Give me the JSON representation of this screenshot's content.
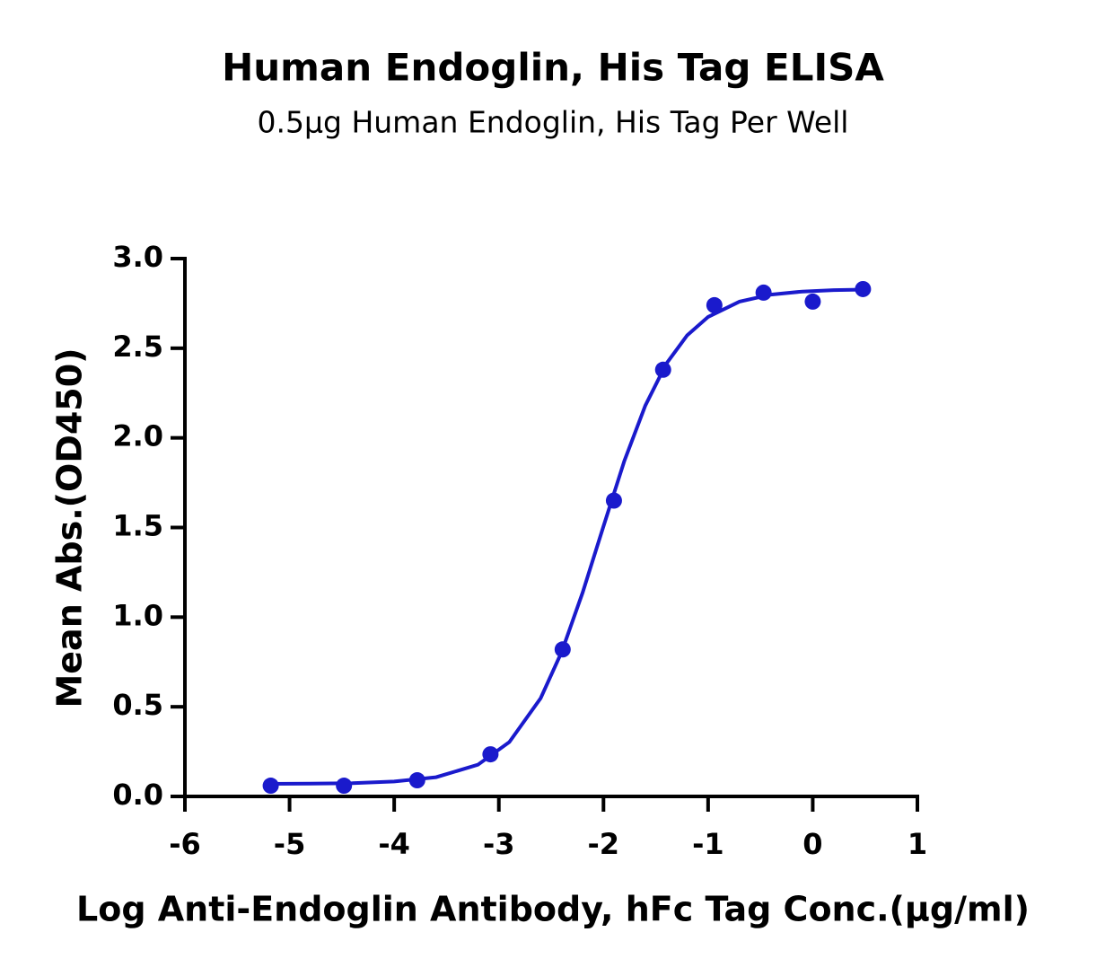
{
  "chart_data": {
    "type": "scatter",
    "title": "Human Endoglin, His Tag ELISA",
    "subtitle": "0.5µg Human Endoglin, His Tag Per Well",
    "x_label": "Log  Anti-Endoglin Antibody, hFc Tag Conc.(µg/ml)",
    "y_label": "Mean Abs.(OD450)",
    "color": "#1a1acc",
    "x": [
      -5.18,
      -4.48,
      -3.78,
      -3.08,
      -2.39,
      -1.9,
      -1.43,
      -0.94,
      -0.47,
      0.0,
      0.48
    ],
    "values": [
      0.06,
      0.06,
      0.09,
      0.235,
      0.82,
      1.65,
      2.38,
      2.74,
      2.81,
      2.76,
      2.83
    ],
    "fit": {
      "x": [
        -5.2,
        -4.8,
        -4.4,
        -4.0,
        -3.6,
        -3.2,
        -2.9,
        -2.6,
        -2.4,
        -2.2,
        -2.0,
        -1.8,
        -1.6,
        -1.4,
        -1.2,
        -1.0,
        -0.7,
        -0.4,
        -0.1,
        0.2,
        0.5
      ],
      "y": [
        0.07,
        0.071,
        0.074,
        0.083,
        0.107,
        0.177,
        0.303,
        0.548,
        0.806,
        1.136,
        1.507,
        1.872,
        2.18,
        2.413,
        2.572,
        2.675,
        2.76,
        2.799,
        2.816,
        2.824,
        2.827
      ]
    },
    "xlim": [
      -6,
      1
    ],
    "xticks": [
      -6,
      -5,
      -4,
      -3,
      -2,
      -1,
      0,
      1
    ],
    "ylim": [
      0,
      3
    ],
    "yticks": [
      {
        "value": 0,
        "label": "0.0"
      },
      {
        "value": 0.5,
        "label": "0.5"
      },
      {
        "value": 1,
        "label": "1.0"
      },
      {
        "value": 1.5,
        "label": "1.5"
      },
      {
        "value": 2,
        "label": "2.0"
      },
      {
        "value": 2.5,
        "label": "2.5"
      },
      {
        "value": 3,
        "label": "3.0"
      }
    ]
  }
}
